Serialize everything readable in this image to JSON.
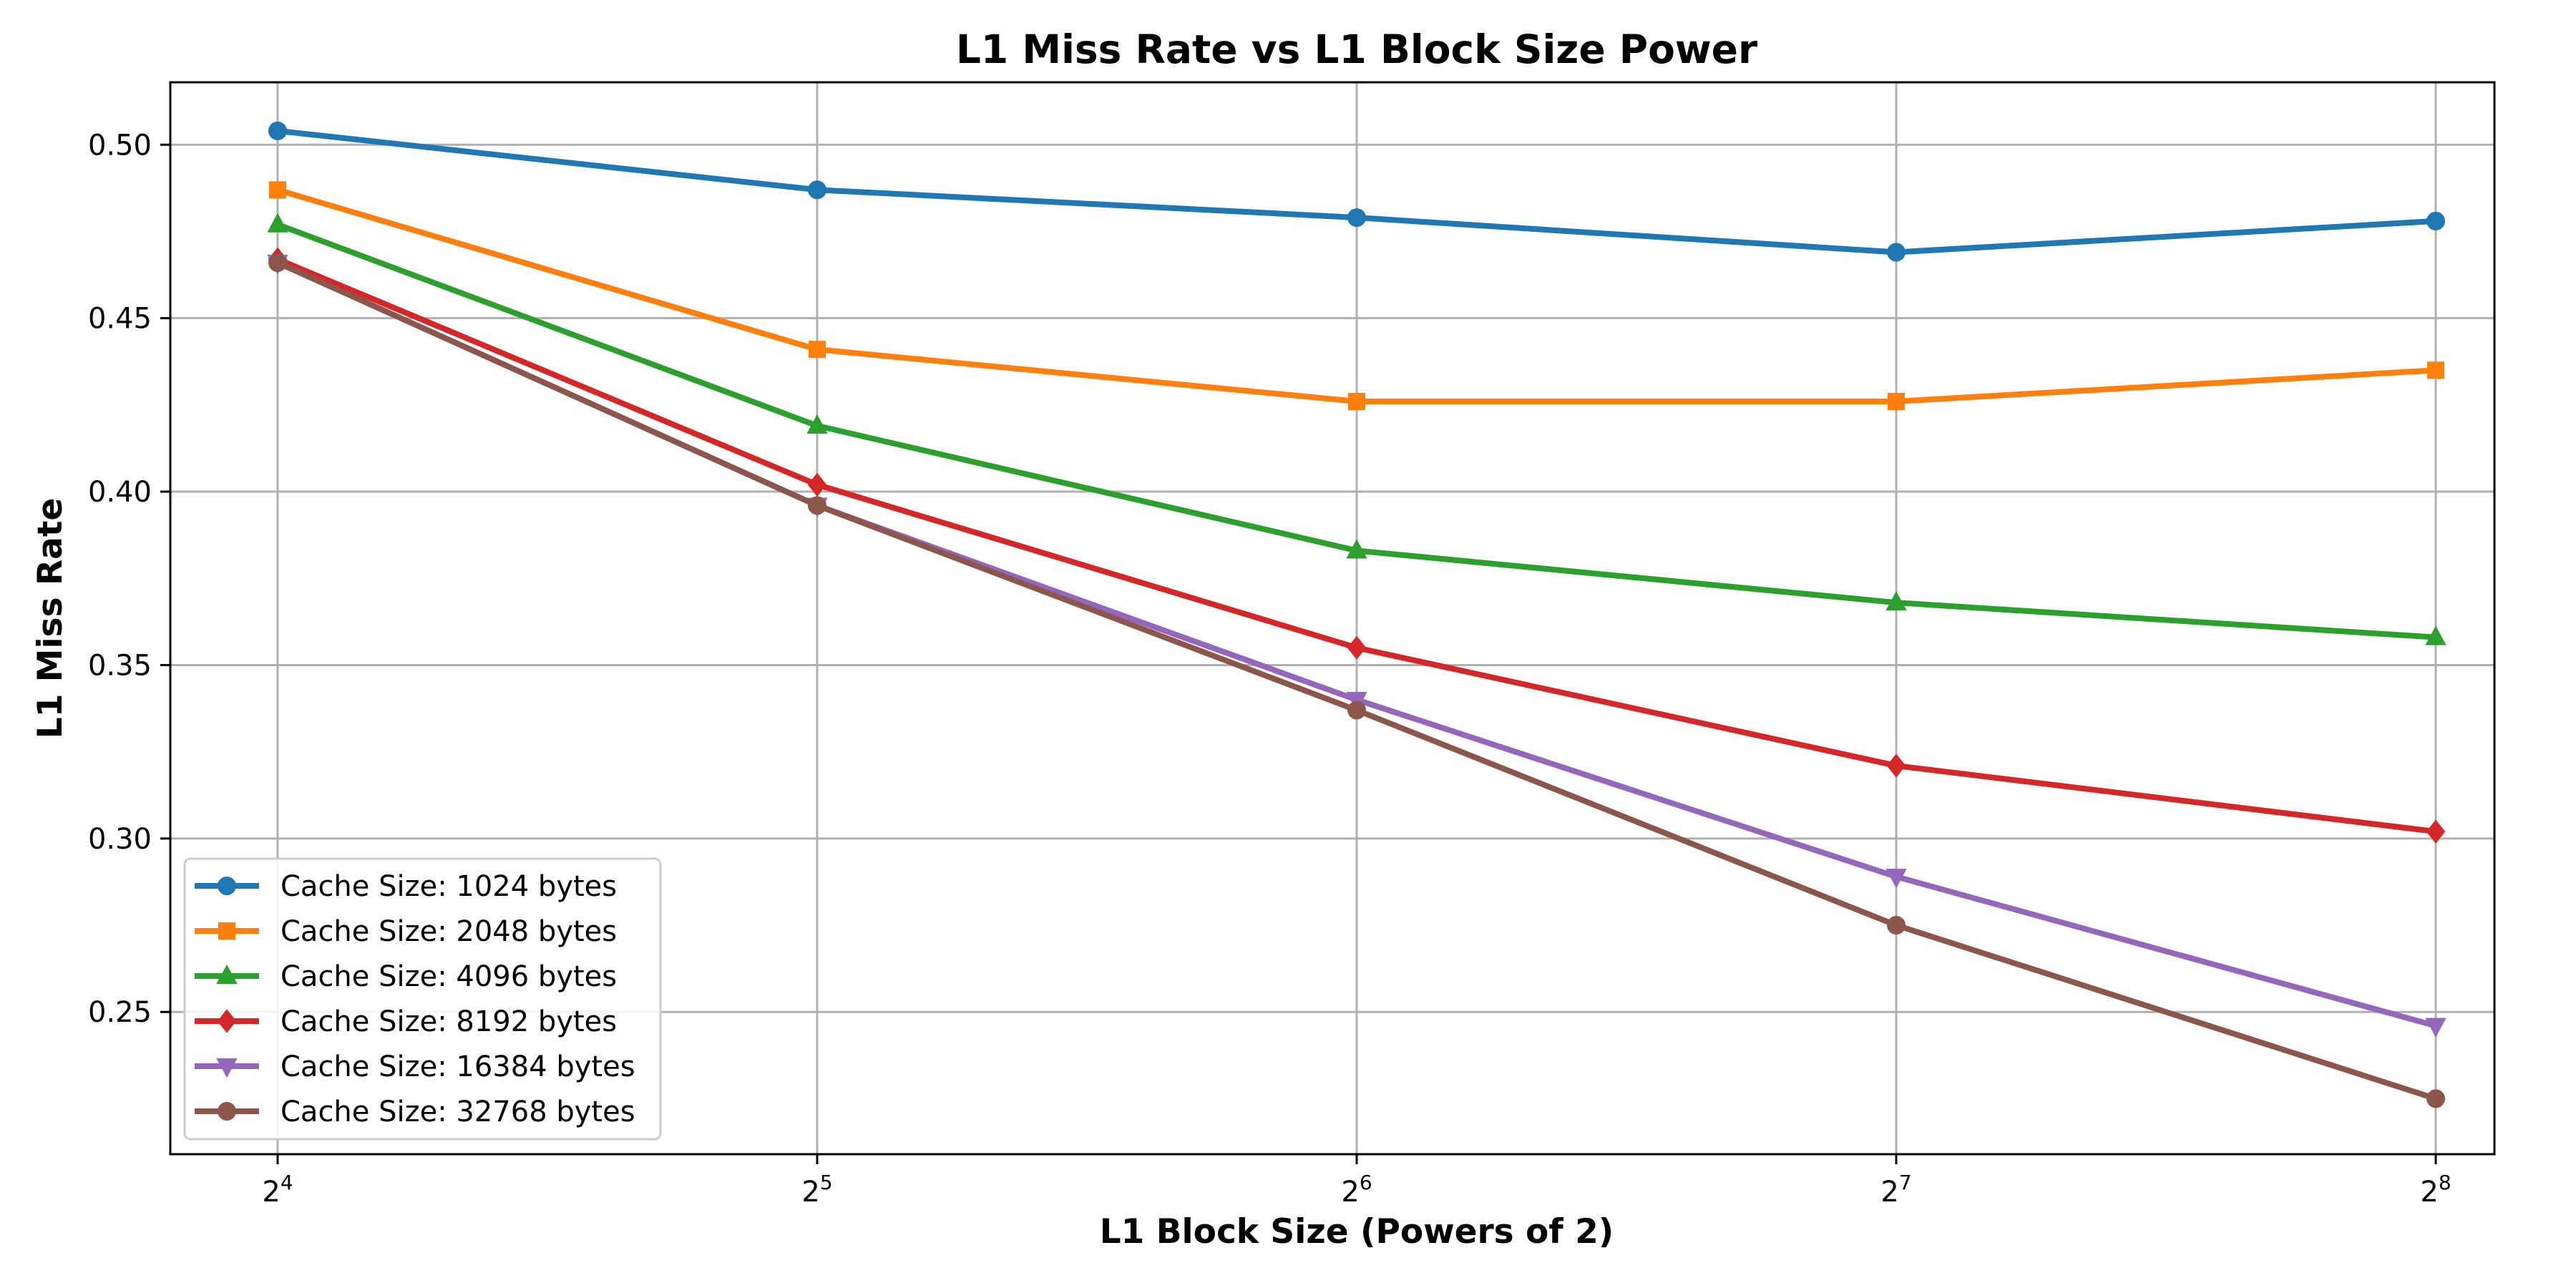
{
  "chart_data": {
    "type": "line",
    "title": "L1 Miss Rate vs L1 Block Size Power",
    "xlabel": "L1 Block Size (Powers of 2)",
    "ylabel": "L1 Miss Rate",
    "x": [
      16,
      32,
      64,
      128,
      256
    ],
    "x_tick_labels": [
      {
        "base": "2",
        "exp": "4"
      },
      {
        "base": "2",
        "exp": "5"
      },
      {
        "base": "2",
        "exp": "6"
      },
      {
        "base": "2",
        "exp": "7"
      },
      {
        "base": "2",
        "exp": "8"
      }
    ],
    "x_scale": "log2",
    "y_ticks": [
      "0.25",
      "0.30",
      "0.35",
      "0.40",
      "0.45",
      "0.50"
    ],
    "ylim": [
      0.209,
      0.518
    ],
    "grid": true,
    "legend_position": "lower-left",
    "series": [
      {
        "name": "Cache Size: 1024 bytes",
        "color": "#1f77b4",
        "marker": "circle",
        "values": [
          0.504,
          0.487,
          0.479,
          0.469,
          0.478
        ]
      },
      {
        "name": "Cache Size: 2048 bytes",
        "color": "#ff7f0e",
        "marker": "square",
        "values": [
          0.487,
          0.441,
          0.426,
          0.426,
          0.435
        ]
      },
      {
        "name": "Cache Size: 4096 bytes",
        "color": "#2ca02c",
        "marker": "triangle-up",
        "values": [
          0.477,
          0.419,
          0.383,
          0.368,
          0.358
        ]
      },
      {
        "name": "Cache Size: 8192 bytes",
        "color": "#d62728",
        "marker": "diamond",
        "values": [
          0.467,
          0.402,
          0.355,
          0.321,
          0.302
        ]
      },
      {
        "name": "Cache Size: 16384 bytes",
        "color": "#9467bd",
        "marker": "triangle-down",
        "values": [
          0.466,
          0.396,
          0.34,
          0.289,
          0.246
        ]
      },
      {
        "name": "Cache Size: 32768 bytes",
        "color": "#8c564b",
        "marker": "circle",
        "values": [
          0.466,
          0.396,
          0.337,
          0.275,
          0.225
        ]
      }
    ]
  }
}
